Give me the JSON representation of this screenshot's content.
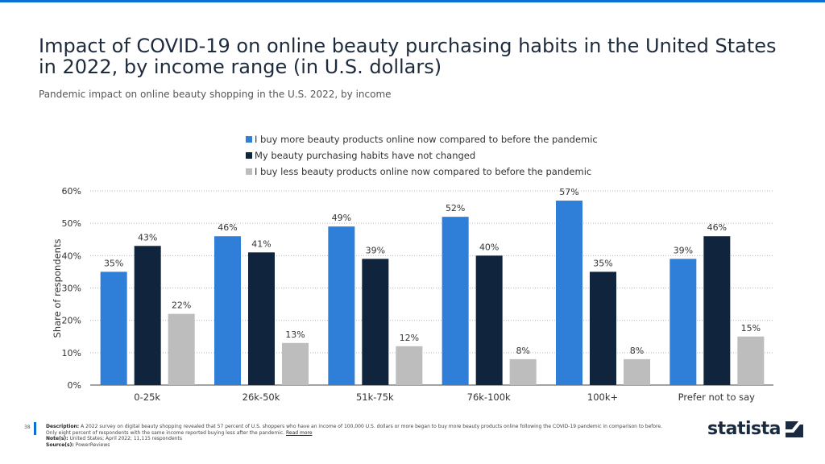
{
  "header": {
    "title": "Impact of COVID-19 on online beauty purchasing habits in the United States in 2022, by income range (in U.S. dollars)",
    "subtitle": "Pandemic impact on online beauty shopping in the U.S. 2022, by income"
  },
  "chart_data": {
    "type": "bar",
    "title": "Impact of COVID-19 on online beauty purchasing habits in the United States in 2022, by income range (in U.S. dollars)",
    "xlabel": "",
    "ylabel": "Share of respondents",
    "ylim": [
      0,
      60
    ],
    "yticks": [
      "0%",
      "10%",
      "20%",
      "30%",
      "40%",
      "50%",
      "60%"
    ],
    "grid": true,
    "legend": "top",
    "categories": [
      "0-25k",
      "26k-50k",
      "51k-75k",
      "76k-100k",
      "100k+",
      "Prefer not to say"
    ],
    "series": [
      {
        "name": "I buy more beauty products online now compared to before the pandemic",
        "color": "#2f7fd9",
        "values": [
          35,
          46,
          49,
          52,
          57,
          39
        ]
      },
      {
        "name": "My beauty purchasing habits have not changed",
        "color": "#10243d",
        "values": [
          43,
          41,
          39,
          40,
          35,
          46
        ]
      },
      {
        "name": "I buy less beauty products online now compared to before the pandemic",
        "color": "#bdbdbd",
        "values": [
          22,
          13,
          12,
          8,
          8,
          15
        ]
      }
    ]
  },
  "footer": {
    "page": "38",
    "description_label": "Description:",
    "description": "A 2022 survey on digital beauty shopping revealed that 57 percent of U.S. shoppers who have an income of 100,000 U.S. dollars or more began to buy more beauty products online following the COVID-19 pandemic in comparison to before. Only eight percent of respondents with the same income reported buying less after the pandemic.",
    "read_more": "Read more",
    "notes_label": "Note(s):",
    "notes": "United States; April 2022; 11,115 respondents",
    "source_label": "Source(s):",
    "source": "PowerReviews",
    "logo": "statista"
  }
}
